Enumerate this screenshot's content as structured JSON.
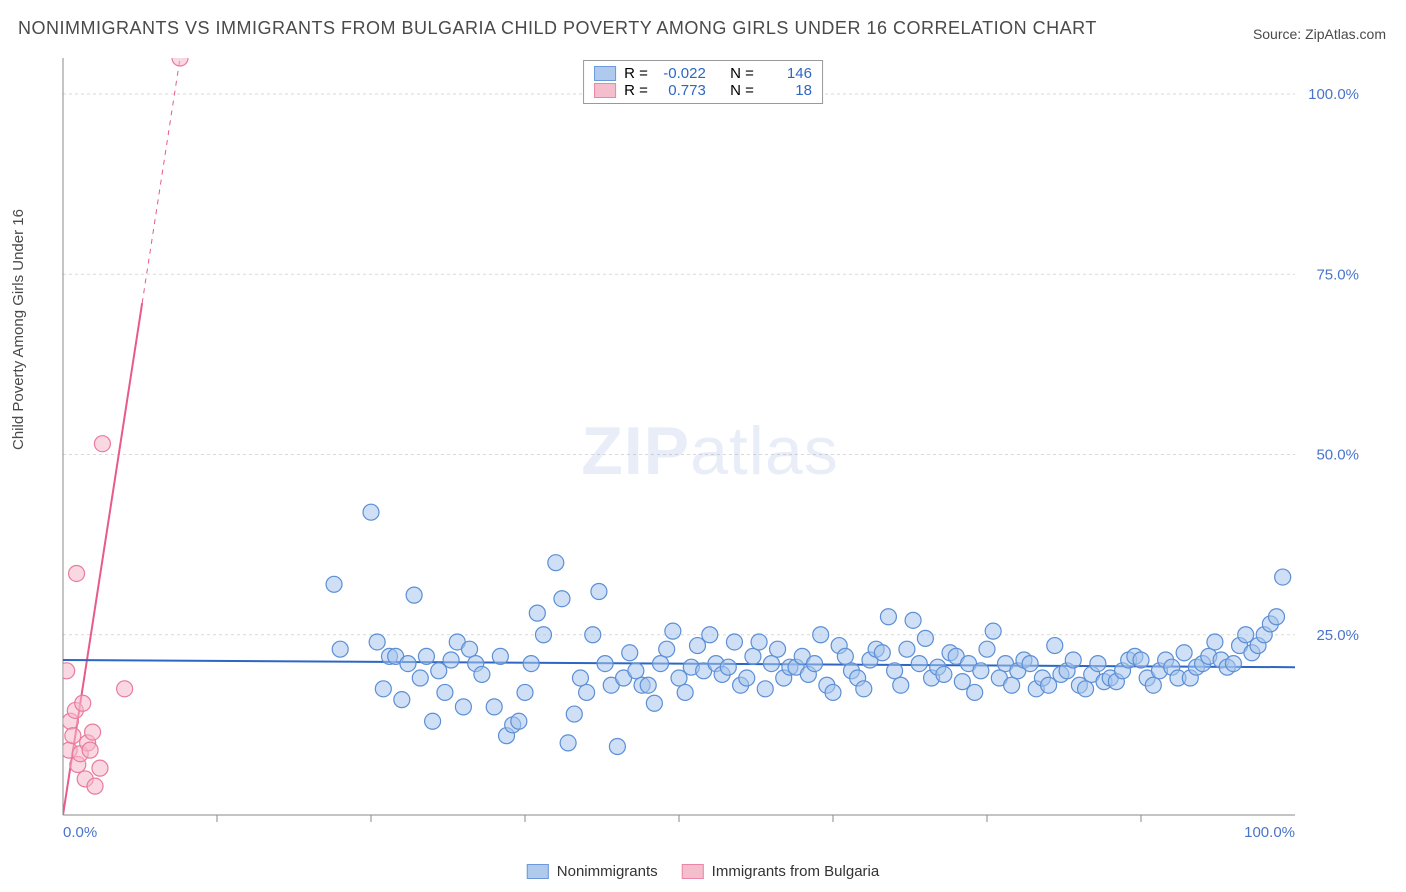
{
  "title": "NONIMMIGRANTS VS IMMIGRANTS FROM BULGARIA CHILD POVERTY AMONG GIRLS UNDER 16 CORRELATION CHART",
  "source": "Source: ZipAtlas.com",
  "y_axis_label": "Child Poverty Among Girls Under 16",
  "watermark_bold": "ZIP",
  "watermark_light": "atlas",
  "chart": {
    "type": "scatter",
    "xlim": [
      0,
      100
    ],
    "ylim": [
      0,
      105
    ],
    "x_tick_min_label": "0.0%",
    "x_tick_max_label": "100.0%",
    "y_ticks": [
      25,
      50,
      75,
      100
    ],
    "y_tick_labels": [
      "25.0%",
      "50.0%",
      "75.0%",
      "100.0%"
    ],
    "x_minor_step": 12.5,
    "grid_color": "#d9d9d9",
    "axis_color": "#888888",
    "background_color": "#ffffff",
    "marker_radius": 8,
    "marker_stroke_width": 1.2,
    "trend_line_width": 2,
    "label_fontsize": 15,
    "title_fontsize": 18,
    "tick_color": "#4a74c9"
  },
  "series": {
    "nonimmigrants": {
      "label": "Nonimmigrants",
      "fill": "#a8c5ec",
      "stroke": "#5b8fd6",
      "fill_opacity": 0.55,
      "r_value": "-0.022",
      "n_value": "146",
      "trend": {
        "x1": 0,
        "y1": 21.5,
        "x2": 100,
        "y2": 20.5,
        "color": "#2d66c4"
      },
      "points": [
        [
          22,
          32
        ],
        [
          22.5,
          23
        ],
        [
          25,
          42
        ],
        [
          25.5,
          24
        ],
        [
          26,
          17.5
        ],
        [
          26.5,
          22
        ],
        [
          27,
          22
        ],
        [
          27.5,
          16
        ],
        [
          28,
          21
        ],
        [
          28.5,
          30.5
        ],
        [
          29,
          19
        ],
        [
          29.5,
          22
        ],
        [
          30,
          13
        ],
        [
          30.5,
          20
        ],
        [
          31,
          17
        ],
        [
          31.5,
          21.5
        ],
        [
          32,
          24
        ],
        [
          32.5,
          15
        ],
        [
          33,
          23
        ],
        [
          33.5,
          21
        ],
        [
          34,
          19.5
        ],
        [
          35,
          15
        ],
        [
          35.5,
          22
        ],
        [
          36,
          11
        ],
        [
          36.5,
          12.5
        ],
        [
          37,
          13
        ],
        [
          37.5,
          17
        ],
        [
          38,
          21
        ],
        [
          38.5,
          28
        ],
        [
          39,
          25
        ],
        [
          40,
          35
        ],
        [
          40.5,
          30
        ],
        [
          41,
          10
        ],
        [
          41.5,
          14
        ],
        [
          42,
          19
        ],
        [
          42.5,
          17
        ],
        [
          43,
          25
        ],
        [
          43.5,
          31
        ],
        [
          44,
          21
        ],
        [
          44.5,
          18
        ],
        [
          45,
          9.5
        ],
        [
          45.5,
          19
        ],
        [
          46,
          22.5
        ],
        [
          46.5,
          20
        ],
        [
          47,
          18
        ],
        [
          47.5,
          18
        ],
        [
          48,
          15.5
        ],
        [
          48.5,
          21
        ],
        [
          49,
          23
        ],
        [
          49.5,
          25.5
        ],
        [
          50,
          19
        ],
        [
          50.5,
          17
        ],
        [
          51,
          20.5
        ],
        [
          51.5,
          23.5
        ],
        [
          52,
          20
        ],
        [
          52.5,
          25
        ],
        [
          53,
          21
        ],
        [
          53.5,
          19.5
        ],
        [
          54,
          20.5
        ],
        [
          54.5,
          24
        ],
        [
          55,
          18
        ],
        [
          55.5,
          19
        ],
        [
          56,
          22
        ],
        [
          56.5,
          24
        ],
        [
          57,
          17.5
        ],
        [
          57.5,
          21
        ],
        [
          58,
          23
        ],
        [
          58.5,
          19
        ],
        [
          59,
          20.5
        ],
        [
          59.5,
          20.5
        ],
        [
          60,
          22
        ],
        [
          60.5,
          19.5
        ],
        [
          61,
          21
        ],
        [
          61.5,
          25
        ],
        [
          62,
          18
        ],
        [
          62.5,
          17
        ],
        [
          63,
          23.5
        ],
        [
          63.5,
          22
        ],
        [
          64,
          20
        ],
        [
          64.5,
          19
        ],
        [
          65,
          17.5
        ],
        [
          65.5,
          21.5
        ],
        [
          66,
          23
        ],
        [
          66.5,
          22.5
        ],
        [
          67,
          27.5
        ],
        [
          67.5,
          20
        ],
        [
          68,
          18
        ],
        [
          68.5,
          23
        ],
        [
          69,
          27
        ],
        [
          69.5,
          21
        ],
        [
          70,
          24.5
        ],
        [
          70.5,
          19
        ],
        [
          71,
          20.5
        ],
        [
          71.5,
          19.5
        ],
        [
          72,
          22.5
        ],
        [
          72.5,
          22
        ],
        [
          73,
          18.5
        ],
        [
          73.5,
          21
        ],
        [
          74,
          17
        ],
        [
          74.5,
          20
        ],
        [
          75,
          23
        ],
        [
          75.5,
          25.5
        ],
        [
          76,
          19
        ],
        [
          76.5,
          21
        ],
        [
          77,
          18
        ],
        [
          77.5,
          20
        ],
        [
          78,
          21.5
        ],
        [
          78.5,
          21
        ],
        [
          79,
          17.5
        ],
        [
          79.5,
          19
        ],
        [
          80,
          18
        ],
        [
          80.5,
          23.5
        ],
        [
          81,
          19.5
        ],
        [
          81.5,
          20
        ],
        [
          82,
          21.5
        ],
        [
          82.5,
          18
        ],
        [
          83,
          17.5
        ],
        [
          83.5,
          19.5
        ],
        [
          84,
          21
        ],
        [
          84.5,
          18.5
        ],
        [
          85,
          19
        ],
        [
          85.5,
          18.5
        ],
        [
          86,
          20
        ],
        [
          86.5,
          21.5
        ],
        [
          87,
          22
        ],
        [
          87.5,
          21.5
        ],
        [
          88,
          19
        ],
        [
          88.5,
          18
        ],
        [
          89,
          20
        ],
        [
          89.5,
          21.5
        ],
        [
          90,
          20.5
        ],
        [
          90.5,
          19
        ],
        [
          91,
          22.5
        ],
        [
          91.5,
          19
        ],
        [
          92,
          20.5
        ],
        [
          92.5,
          21
        ],
        [
          93,
          22
        ],
        [
          93.5,
          24
        ],
        [
          94,
          21.5
        ],
        [
          94.5,
          20.5
        ],
        [
          95,
          21
        ],
        [
          95.5,
          23.5
        ],
        [
          96,
          25
        ],
        [
          96.5,
          22.5
        ],
        [
          97,
          23.5
        ],
        [
          97.5,
          25
        ],
        [
          98,
          26.5
        ],
        [
          98.5,
          27.5
        ],
        [
          99,
          33
        ]
      ]
    },
    "immigrants": {
      "label": "Immigrants from Bulgaria",
      "fill": "#f5b8c8",
      "stroke": "#e87ba0",
      "fill_opacity": 0.55,
      "r_value": "0.773",
      "n_value": "18",
      "trend": {
        "x1": 0,
        "y1": 0,
        "x2": 9.5,
        "y2": 105,
        "color": "#e85a8a",
        "dash_after_y": 71
      },
      "points": [
        [
          0.3,
          20
        ],
        [
          0.5,
          9
        ],
        [
          0.6,
          13
        ],
        [
          0.8,
          11
        ],
        [
          1.0,
          14.5
        ],
        [
          1.2,
          7
        ],
        [
          1.4,
          8.5
        ],
        [
          1.6,
          15.5
        ],
        [
          1.1,
          33.5
        ],
        [
          1.8,
          5
        ],
        [
          2.0,
          10
        ],
        [
          2.2,
          9
        ],
        [
          2.4,
          11.5
        ],
        [
          2.6,
          4
        ],
        [
          3.0,
          6.5
        ],
        [
          5,
          17.5
        ],
        [
          3.2,
          51.5
        ],
        [
          9.5,
          105
        ]
      ]
    }
  },
  "legend_top": {
    "r_label": "R =",
    "n_label": "N =",
    "value_color": "#2d66c4"
  },
  "legend_bottom": {
    "items": [
      "nonimmigrants",
      "immigrants"
    ]
  }
}
